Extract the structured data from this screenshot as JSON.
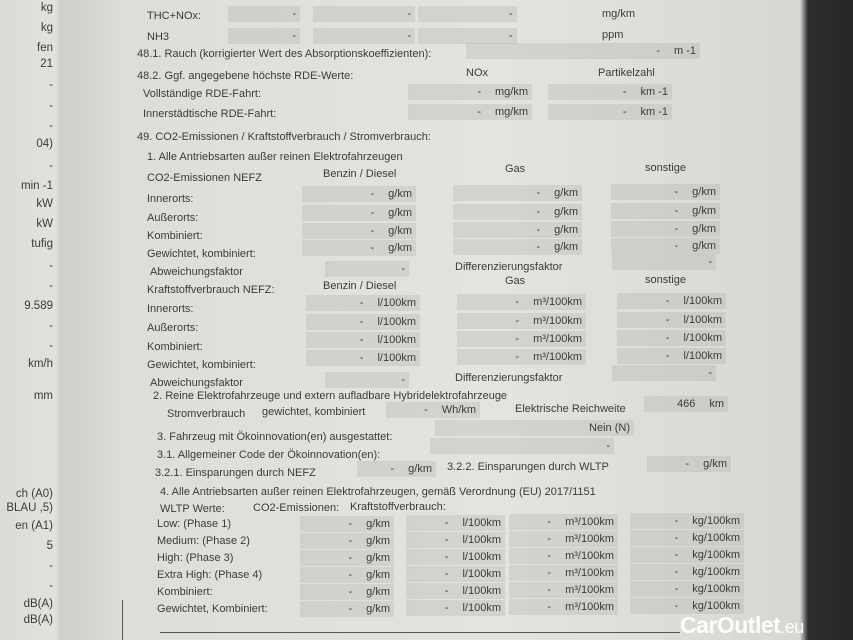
{
  "left_strip": [
    "kg",
    "kg",
    "fen",
    "21",
    "-",
    "-",
    "-",
    "04)",
    "-",
    "min -1",
    "kW",
    "kW",
    "tufig",
    "-",
    "-",
    "9.589",
    "-",
    "-",
    "km/h",
    "mm",
    "ch (A0)",
    "BLAU ,5)",
    "en (A1)",
    "5",
    "-",
    "-",
    "dB(A)",
    "dB(A)"
  ],
  "emissions": {
    "thc_nox": {
      "label": "THC+NOx:",
      "values": [
        "-",
        "-",
        "-"
      ],
      "unit": "mg/km"
    },
    "nh3": {
      "label": "NH3",
      "values": [
        "-",
        "-",
        "-"
      ],
      "unit": "ppm"
    }
  },
  "smoke": {
    "label": "48.1. Rauch (korrigierter Wert des Absorptionskoeffizienten):",
    "value": "-",
    "unit": "m -1"
  },
  "rde": {
    "title": "48.2. Ggf. angegebene höchste RDE-Werte:",
    "col_nox": "NOx",
    "col_particles": "Partikelzahl",
    "full": {
      "label": "Vollständige RDE-Fahrt:",
      "nox": {
        "value": "-",
        "unit": "mg/km"
      },
      "pn": {
        "value": "-",
        "unit": "km -1"
      }
    },
    "urban": {
      "label": "Innerstädtische RDE-Fahrt:",
      "nox": {
        "value": "-",
        "unit": "mg/km"
      },
      "pn": {
        "value": "-",
        "unit": "km -1"
      }
    }
  },
  "co2": {
    "title": "49. CO2-Emissionen / Kraftstoffverbrauch / Stromverbrauch:",
    "sec1_title": "1. Alle Antriebsarten außer reinen Elektrofahrzeugen",
    "nefz_co2": {
      "header": "CO2-Emissionen NEFZ",
      "col_petrol": "Benzin / Diesel",
      "col_gas": "Gas",
      "col_other": "sonstige",
      "rows": [
        {
          "label": "Innerorts:",
          "petrol": {
            "value": "-",
            "unit": "g/km"
          },
          "gas": {
            "value": "-",
            "unit": "g/km"
          },
          "other": {
            "value": "-",
            "unit": "g/km"
          }
        },
        {
          "label": "Außerorts:",
          "petrol": {
            "value": "-",
            "unit": "g/km"
          },
          "gas": {
            "value": "-",
            "unit": "g/km"
          },
          "other": {
            "value": "-",
            "unit": "g/km"
          }
        },
        {
          "label": "Kombiniert:",
          "petrol": {
            "value": "-",
            "unit": "g/km"
          },
          "gas": {
            "value": "-",
            "unit": "g/km"
          },
          "other": {
            "value": "-",
            "unit": "g/km"
          }
        },
        {
          "label": "Gewichtet, kombiniert:",
          "petrol": {
            "value": "-",
            "unit": "g/km"
          },
          "gas": {
            "value": "-",
            "unit": "g/km"
          },
          "other": {
            "value": "-",
            "unit": "g/km"
          }
        }
      ],
      "deviation": {
        "label": "Abweichungsfaktor",
        "petrol": "-",
        "diff_label": "Differenzierungsfaktor",
        "other": "-"
      }
    },
    "nefz_fuel": {
      "header": "Kraftstoffverbrauch NEFZ:",
      "col_petrol": "Benzin / Diesel",
      "col_gas": "Gas",
      "col_other": "sonstige",
      "rows": [
        {
          "label": "Innerorts:",
          "petrol": {
            "value": "-",
            "unit": "l/100km"
          },
          "gas": {
            "value": "-",
            "unit": "m³/100km"
          },
          "other": {
            "value": "-",
            "unit": "l/100km"
          }
        },
        {
          "label": "Außerorts:",
          "petrol": {
            "value": "-",
            "unit": "l/100km"
          },
          "gas": {
            "value": "-",
            "unit": "m³/100km"
          },
          "other": {
            "value": "-",
            "unit": "l/100km"
          }
        },
        {
          "label": "Kombiniert:",
          "petrol": {
            "value": "-",
            "unit": "l/100km"
          },
          "gas": {
            "value": "-",
            "unit": "m³/100km"
          },
          "other": {
            "value": "-",
            "unit": "l/100km"
          }
        },
        {
          "label": "Gewichtet, kombiniert:",
          "petrol": {
            "value": "-",
            "unit": "l/100km"
          },
          "gas": {
            "value": "-",
            "unit": "m³/100km"
          },
          "other": {
            "value": "-",
            "unit": "l/100km"
          }
        }
      ],
      "deviation": {
        "label": "Abweichungsfaktor",
        "petrol": "-",
        "diff_label": "Differenzierungsfaktor",
        "other": "-"
      }
    },
    "sec2": {
      "title": "2. Reine Elektrofahrzeuge und extern aufladbare Hybridelektrofahrzeuge",
      "consumption_label": "Stromverbrauch",
      "weighted_label": "gewichtet, kombiniert",
      "consumption": {
        "value": "-",
        "unit": "Wh/km"
      },
      "range_label": "Elektrische Reichweite",
      "range": {
        "value": "466",
        "unit": "km"
      }
    },
    "sec3": {
      "label": "3. Fahrzeug mit Ökoinnovation(en) ausgestattet:",
      "value": "Nein (N)"
    },
    "sec31": {
      "label": "3.1. Allgemeiner Code der Ökoinnovation(en):",
      "value": "-"
    },
    "sec321": {
      "label": "3.2.1. Einsparungen durch NEFZ",
      "value": "-",
      "unit": "g/km"
    },
    "sec322": {
      "label": "3.2.2. Einsparungen durch WLTP",
      "value": "-",
      "unit": "g/km"
    },
    "sec4": {
      "title": "4. Alle Antriebsarten außer reinen Elektrofahrzeugen, gemäß Verordnung (EU) 2017/1151",
      "header_wltp": "WLTP Werte:",
      "header_co2": "CO2-Emissionen:",
      "header_fuel": "Kraftstoffverbrauch:",
      "rows": [
        {
          "label": "Low: (Phase 1)",
          "co2": {
            "value": "-",
            "unit": "g/km"
          },
          "liquid": {
            "value": "-",
            "unit": "l/100km"
          },
          "gas": {
            "value": "-",
            "unit": "m³/100km"
          },
          "mass": {
            "value": "-",
            "unit": "kg/100km"
          }
        },
        {
          "label": "Medium: (Phase 2)",
          "co2": {
            "value": "-",
            "unit": "g/km"
          },
          "liquid": {
            "value": "-",
            "unit": "l/100km"
          },
          "gas": {
            "value": "-",
            "unit": "m³/100km"
          },
          "mass": {
            "value": "-",
            "unit": "kg/100km"
          }
        },
        {
          "label": "High: (Phase 3)",
          "co2": {
            "value": "-",
            "unit": "g/km"
          },
          "liquid": {
            "value": "-",
            "unit": "l/100km"
          },
          "gas": {
            "value": "-",
            "unit": "m³/100km"
          },
          "mass": {
            "value": "-",
            "unit": "kg/100km"
          }
        },
        {
          "label": "Extra High: (Phase 4)",
          "co2": {
            "value": "-",
            "unit": "g/km"
          },
          "liquid": {
            "value": "-",
            "unit": "l/100km"
          },
          "gas": {
            "value": "-",
            "unit": "m³/100km"
          },
          "mass": {
            "value": "-",
            "unit": "kg/100km"
          }
        },
        {
          "label": "Kombiniert:",
          "co2": {
            "value": "-",
            "unit": "g/km"
          },
          "liquid": {
            "value": "-",
            "unit": "l/100km"
          },
          "gas": {
            "value": "-",
            "unit": "m³/100km"
          },
          "mass": {
            "value": "-",
            "unit": "kg/100km"
          }
        },
        {
          "label": "Gewichtet, Kombiniert:",
          "co2": {
            "value": "-",
            "unit": "g/km"
          },
          "liquid": {
            "value": "-",
            "unit": "l/100km"
          },
          "gas": {
            "value": "-",
            "unit": "m³/100km"
          },
          "mass": {
            "value": "-",
            "unit": "kg/100km"
          }
        }
      ]
    }
  },
  "watermark": {
    "brand": "CarOutlet",
    "suffix": ".eu"
  }
}
